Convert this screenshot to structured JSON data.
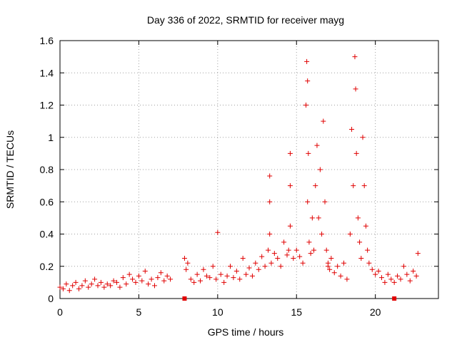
{
  "chart_data": {
    "type": "scatter",
    "title": "Day 336 of 2022, SRMTID for receiver mayg",
    "xlabel": "GPS time / hours",
    "ylabel": "SRMTID / TECUs",
    "xlim": [
      0,
      24
    ],
    "ylim": [
      0,
      1.6
    ],
    "x_ticks": [
      0,
      5,
      10,
      15,
      20
    ],
    "x_tick_labels": [
      "0",
      "5",
      "10",
      "15",
      "20"
    ],
    "y_ticks": [
      0,
      0.2,
      0.4,
      0.6,
      0.8,
      1.0,
      1.2,
      1.4,
      1.6
    ],
    "y_tick_labels": [
      "0",
      "0.2",
      "0.4",
      "0.6",
      "0.8",
      "1",
      "1.2",
      "1.4",
      "1.6"
    ],
    "grid": true,
    "marker": "+",
    "color": "#e00000",
    "gap_markers": [
      {
        "x": 7.9,
        "y": 0
      },
      {
        "x": 21.2,
        "y": 0
      }
    ],
    "series": [
      {
        "name": "SRMTID",
        "x": [
          0.0,
          0.2,
          0.4,
          0.6,
          0.8,
          1.0,
          1.2,
          1.4,
          1.6,
          1.8,
          2.0,
          2.2,
          2.4,
          2.6,
          2.8,
          3.0,
          3.2,
          3.4,
          3.6,
          3.8,
          4.0,
          4.2,
          4.4,
          4.6,
          4.8,
          5.0,
          5.2,
          5.4,
          5.6,
          5.8,
          6.0,
          6.2,
          6.4,
          6.6,
          6.8,
          7.0,
          7.9,
          8.0,
          8.1,
          8.3,
          8.5,
          8.7,
          8.9,
          9.1,
          9.3,
          9.5,
          9.7,
          9.9,
          10.0,
          10.2,
          10.4,
          10.6,
          10.8,
          11.0,
          11.2,
          11.4,
          11.6,
          11.8,
          12.0,
          12.2,
          12.4,
          12.6,
          12.8,
          13.0,
          13.2,
          13.3,
          13.3,
          13.3,
          13.4,
          13.6,
          13.8,
          14.0,
          14.2,
          14.4,
          14.5,
          14.6,
          14.6,
          14.6,
          14.8,
          15.0,
          15.2,
          15.4,
          15.6,
          15.65,
          15.7,
          15.7,
          15.75,
          15.8,
          15.9,
          16.0,
          16.1,
          16.2,
          16.3,
          16.4,
          16.5,
          16.6,
          16.7,
          16.8,
          16.9,
          17.0,
          17.0,
          17.1,
          17.2,
          17.4,
          17.6,
          17.8,
          18.0,
          18.2,
          18.4,
          18.5,
          18.6,
          18.7,
          18.75,
          18.8,
          18.9,
          19.0,
          19.1,
          19.2,
          19.3,
          19.4,
          19.5,
          19.6,
          19.8,
          20.0,
          20.2,
          20.4,
          20.6,
          20.8,
          21.0,
          21.2,
          21.4,
          21.6,
          21.8,
          22.0,
          22.2,
          22.4,
          22.6,
          22.7
        ],
        "y": [
          0.07,
          0.06,
          0.09,
          0.05,
          0.08,
          0.1,
          0.06,
          0.08,
          0.11,
          0.07,
          0.09,
          0.12,
          0.08,
          0.1,
          0.07,
          0.09,
          0.08,
          0.11,
          0.1,
          0.07,
          0.13,
          0.09,
          0.15,
          0.12,
          0.1,
          0.14,
          0.11,
          0.17,
          0.09,
          0.12,
          0.08,
          0.13,
          0.16,
          0.11,
          0.14,
          0.12,
          0.25,
          0.18,
          0.22,
          0.12,
          0.1,
          0.15,
          0.11,
          0.18,
          0.14,
          0.13,
          0.2,
          0.12,
          0.41,
          0.15,
          0.1,
          0.14,
          0.2,
          0.13,
          0.17,
          0.12,
          0.25,
          0.15,
          0.19,
          0.14,
          0.22,
          0.18,
          0.26,
          0.2,
          0.3,
          0.76,
          0.6,
          0.4,
          0.22,
          0.28,
          0.25,
          0.2,
          0.35,
          0.27,
          0.3,
          0.9,
          0.7,
          0.45,
          0.25,
          0.3,
          0.26,
          0.22,
          1.2,
          1.47,
          1.35,
          0.6,
          0.9,
          0.35,
          0.28,
          0.5,
          0.3,
          0.7,
          0.95,
          0.5,
          0.8,
          0.4,
          1.1,
          0.6,
          0.3,
          0.22,
          0.2,
          0.18,
          0.25,
          0.16,
          0.2,
          0.14,
          0.22,
          0.12,
          0.4,
          1.05,
          0.7,
          1.5,
          1.3,
          0.9,
          0.5,
          0.35,
          0.25,
          1.0,
          0.7,
          0.45,
          0.3,
          0.22,
          0.18,
          0.15,
          0.17,
          0.13,
          0.1,
          0.15,
          0.12,
          0.1,
          0.14,
          0.12,
          0.2,
          0.15,
          0.11,
          0.17,
          0.14,
          0.28
        ]
      }
    ]
  }
}
